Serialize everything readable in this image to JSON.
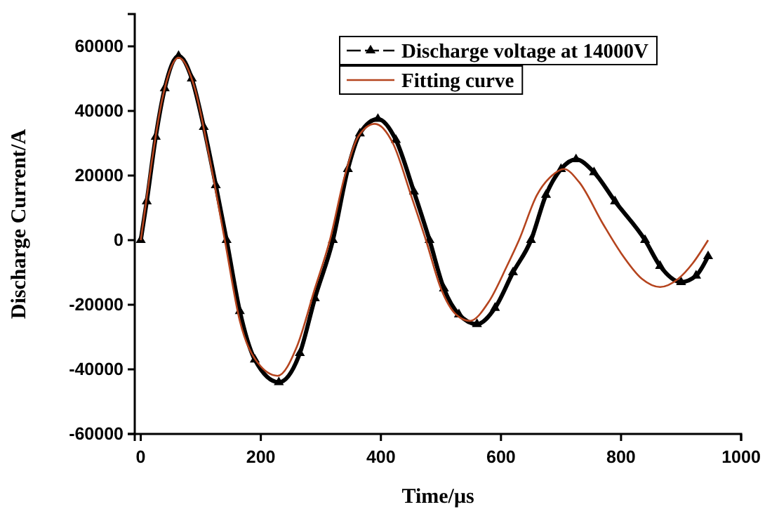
{
  "chart_data": {
    "type": "line",
    "xlabel": "Time/μs",
    "ylabel": "Discharge Current/A",
    "xlim": [
      -10,
      1000
    ],
    "ylim": [
      -60000,
      70000
    ],
    "xticks": [
      0,
      200,
      400,
      600,
      800,
      1000
    ],
    "yticks": [
      -60000,
      -40000,
      -20000,
      0,
      20000,
      40000,
      60000
    ],
    "legend": "top right",
    "grid": false,
    "series": [
      {
        "name": "Discharge voltage at 14000V",
        "color": "#000000",
        "marker": "triangle",
        "x": [
          0,
          10,
          25,
          40,
          63,
          85,
          105,
          125,
          143,
          165,
          190,
          230,
          265,
          290,
          320,
          345,
          365,
          395,
          425,
          455,
          481,
          505,
          530,
          560,
          590,
          620,
          650,
          675,
          700,
          725,
          755,
          790,
          840,
          865,
          900,
          925,
          945
        ],
        "values": [
          0,
          12000,
          32000,
          47000,
          57000,
          50000,
          35000,
          17000,
          0,
          -22000,
          -37000,
          -44000,
          -35000,
          -18000,
          0,
          22000,
          33000,
          37500,
          31000,
          15000,
          0,
          -15000,
          -23000,
          -26000,
          -21000,
          -10000,
          0,
          14000,
          22000,
          25000,
          21000,
          12000,
          0,
          -8000,
          -13000,
          -11000,
          -5000
        ]
      },
      {
        "name": "Fitting curve",
        "color": "#b5441e",
        "marker": "none",
        "x": [
          0,
          15,
          35,
          63,
          90,
          115,
          140,
          165,
          195,
          228,
          260,
          290,
          315,
          340,
          362,
          390,
          420,
          450,
          475,
          500,
          525,
          548,
          580,
          610,
          630,
          660,
          685,
          705,
          730,
          770,
          800,
          835,
          865,
          895,
          920,
          945
        ],
        "values": [
          0,
          20000,
          43000,
          56500,
          47000,
          25000,
          0,
          -25000,
          -38000,
          -42000,
          -33000,
          -15000,
          0,
          20000,
          32000,
          36000,
          30000,
          14000,
          0,
          -15000,
          -23000,
          -25000,
          -19000,
          -8000,
          0,
          14000,
          20000,
          22000,
          18000,
          5000,
          -4000,
          -12000,
          -14500,
          -12000,
          -7000,
          0
        ]
      }
    ]
  }
}
